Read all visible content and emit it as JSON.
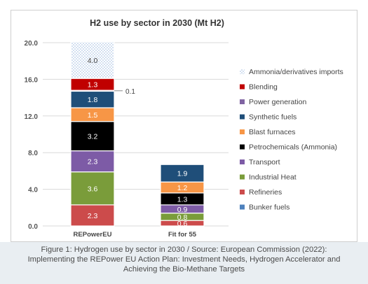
{
  "chart_data": {
    "type": "bar",
    "stacked": true,
    "title": "H2 use by sector in 2030 (Mt H2)",
    "xlabel": "",
    "ylabel": "",
    "ylim": [
      0,
      20
    ],
    "yticks": [
      0,
      4,
      8,
      12,
      16,
      20
    ],
    "ytick_labels": [
      "0.0",
      "4.0",
      "8.0",
      "12.0",
      "16.0",
      "20.0"
    ],
    "grid": true,
    "legend_position": "right",
    "categories": [
      "REPowerEU",
      "Fit for 55"
    ],
    "series": [
      {
        "name": "Bunker fuels",
        "color": "#4e81bd",
        "values": [
          0,
          0
        ],
        "labels": [
          "",
          ""
        ]
      },
      {
        "name": "Refineries",
        "color": "#cc4b4b",
        "values": [
          2.3,
          0.6
        ],
        "labels": [
          "2.3",
          "0.6"
        ]
      },
      {
        "name": "Industrial Heat",
        "color": "#7a9c3a",
        "values": [
          3.6,
          0.8
        ],
        "labels": [
          "3.6",
          "0.8"
        ]
      },
      {
        "name": "Transport",
        "color": "#7d5ba6",
        "values": [
          2.3,
          0.9
        ],
        "labels": [
          "2.3",
          "0.9"
        ]
      },
      {
        "name": "Petrochemicals (Ammonia)",
        "color": "#000000",
        "values": [
          3.2,
          1.3
        ],
        "labels": [
          "3.2",
          "1.3"
        ]
      },
      {
        "name": "Blast furnaces",
        "color": "#f79646",
        "values": [
          1.5,
          1.2
        ],
        "labels": [
          "1.5",
          "1.2"
        ]
      },
      {
        "name": "Synthetic fuels",
        "color": "#1f4e79",
        "values": [
          1.8,
          1.9
        ],
        "labels": [
          "1.8",
          "1.9"
        ]
      },
      {
        "name": "Power generation",
        "color": "#8064a2",
        "values": [
          0.1,
          0
        ],
        "labels": [
          "",
          ""
        ]
      },
      {
        "name": "Blending",
        "color": "#c00000",
        "values": [
          1.3,
          0
        ],
        "labels": [
          "1.3",
          ""
        ]
      },
      {
        "name": "Ammonia/derivatives imports",
        "color": "#b8cce4",
        "values": [
          4.0,
          0
        ],
        "labels": [
          "4.0",
          ""
        ]
      }
    ],
    "annotations": [
      {
        "text": "0.1",
        "category": "REPowerEU",
        "series": "Power generation"
      }
    ]
  },
  "caption_lines": [
    "Figure 1: Hydrogen use by sector in 2030 / Source: European Commission (2022):",
    "Implementing the REPower EU Action Plan: Investment Needs, Hydrogen Accelerator and",
    "Achieving the Bio-Methane Targets"
  ]
}
